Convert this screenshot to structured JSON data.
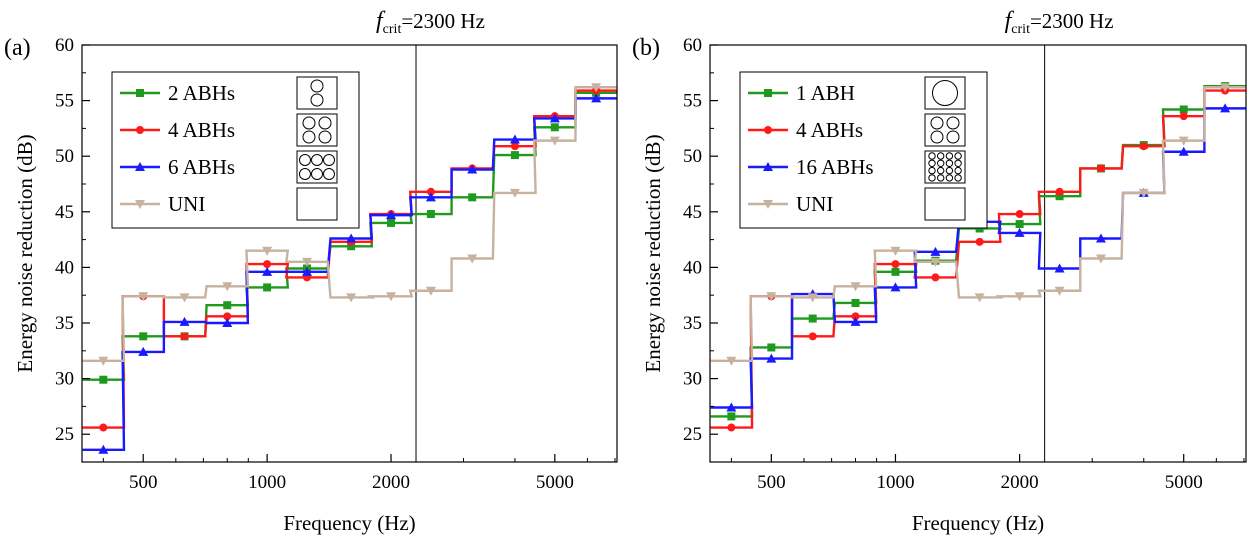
{
  "chart_data": [
    {
      "panel": "(a)",
      "type": "line",
      "step": true,
      "annotation": {
        "symbol": "f",
        "subscript": "crit",
        "text": "=2300 Hz",
        "x": 2300
      },
      "xlabel": "Frequency (Hz)",
      "ylabel": "Energy noise reduction (dB)",
      "xscale": "log",
      "xlim": [
        355,
        7080
      ],
      "ylim": [
        22.5,
        60
      ],
      "xticks": [
        500,
        1000,
        2000,
        5000
      ],
      "yticks": [
        25,
        30,
        35,
        40,
        45,
        50,
        55,
        60
      ],
      "legend_position": "top-left",
      "x": [
        400,
        500,
        630,
        800,
        1000,
        1250,
        1600,
        2000,
        2500,
        3150,
        4000,
        5000,
        6300
      ],
      "series": [
        {
          "name": "2 ABHs",
          "color": "#1f9a1f",
          "marker": "square",
          "icon": "2-circles",
          "values": [
            29.9,
            33.8,
            33.8,
            36.6,
            38.2,
            39.9,
            41.9,
            44.0,
            44.8,
            46.3,
            50.1,
            52.6,
            55.7
          ]
        },
        {
          "name": "4 ABHs",
          "color": "#ff1a1a",
          "marker": "circle",
          "icon": "4-circles",
          "values": [
            25.6,
            37.4,
            33.8,
            35.6,
            40.3,
            39.1,
            42.3,
            44.8,
            46.8,
            48.9,
            50.9,
            53.6,
            55.9
          ]
        },
        {
          "name": "6 ABHs",
          "color": "#1a1aff",
          "marker": "triangle",
          "icon": "6-circles",
          "values": [
            23.6,
            32.4,
            35.1,
            35.0,
            39.6,
            39.6,
            42.6,
            44.7,
            46.3,
            48.8,
            51.5,
            53.4,
            55.2
          ]
        },
        {
          "name": "UNI",
          "color": "#c7b29f",
          "marker": "triangle-down",
          "icon": "empty",
          "values": [
            31.6,
            37.4,
            37.3,
            38.3,
            41.5,
            40.5,
            37.3,
            37.4,
            37.9,
            40.8,
            46.7,
            51.4,
            56.2
          ]
        }
      ]
    },
    {
      "panel": "(b)",
      "type": "line",
      "step": true,
      "annotation": {
        "symbol": "f",
        "subscript": "crit",
        "text": "=2300 Hz",
        "x": 2300
      },
      "xlabel": "Frequency (Hz)",
      "ylabel": "Energy noise reduction (dB)",
      "xscale": "log",
      "xlim": [
        355,
        7080
      ],
      "ylim": [
        22.5,
        60
      ],
      "xticks": [
        500,
        1000,
        2000,
        5000
      ],
      "yticks": [
        25,
        30,
        35,
        40,
        45,
        50,
        55,
        60
      ],
      "legend_position": "top-left",
      "x": [
        400,
        500,
        630,
        800,
        1000,
        1250,
        1600,
        2000,
        2500,
        3150,
        4000,
        5000,
        6300
      ],
      "series": [
        {
          "name": "1 ABH",
          "color": "#1f9a1f",
          "marker": "square",
          "icon": "1-circle",
          "values": [
            26.6,
            32.8,
            35.4,
            36.8,
            39.6,
            40.6,
            43.5,
            43.9,
            46.4,
            48.9,
            51.0,
            54.2,
            56.3
          ]
        },
        {
          "name": "4 ABHs",
          "color": "#ff1a1a",
          "marker": "circle",
          "icon": "4-circles",
          "values": [
            25.6,
            37.4,
            33.8,
            35.6,
            40.3,
            39.1,
            42.3,
            44.8,
            46.8,
            48.9,
            50.9,
            53.6,
            55.9
          ]
        },
        {
          "name": "16 ABHs",
          "color": "#1a1aff",
          "marker": "triangle",
          "icon": "16-circles",
          "values": [
            27.4,
            31.8,
            37.6,
            35.1,
            38.2,
            41.4,
            44.1,
            43.1,
            39.9,
            42.6,
            46.7,
            50.4,
            54.3
          ]
        },
        {
          "name": "UNI",
          "color": "#c7b29f",
          "marker": "triangle-down",
          "icon": "empty",
          "values": [
            31.6,
            37.4,
            37.3,
            38.3,
            41.5,
            40.5,
            37.3,
            37.4,
            37.9,
            40.8,
            46.7,
            51.4,
            56.2
          ]
        }
      ]
    }
  ]
}
